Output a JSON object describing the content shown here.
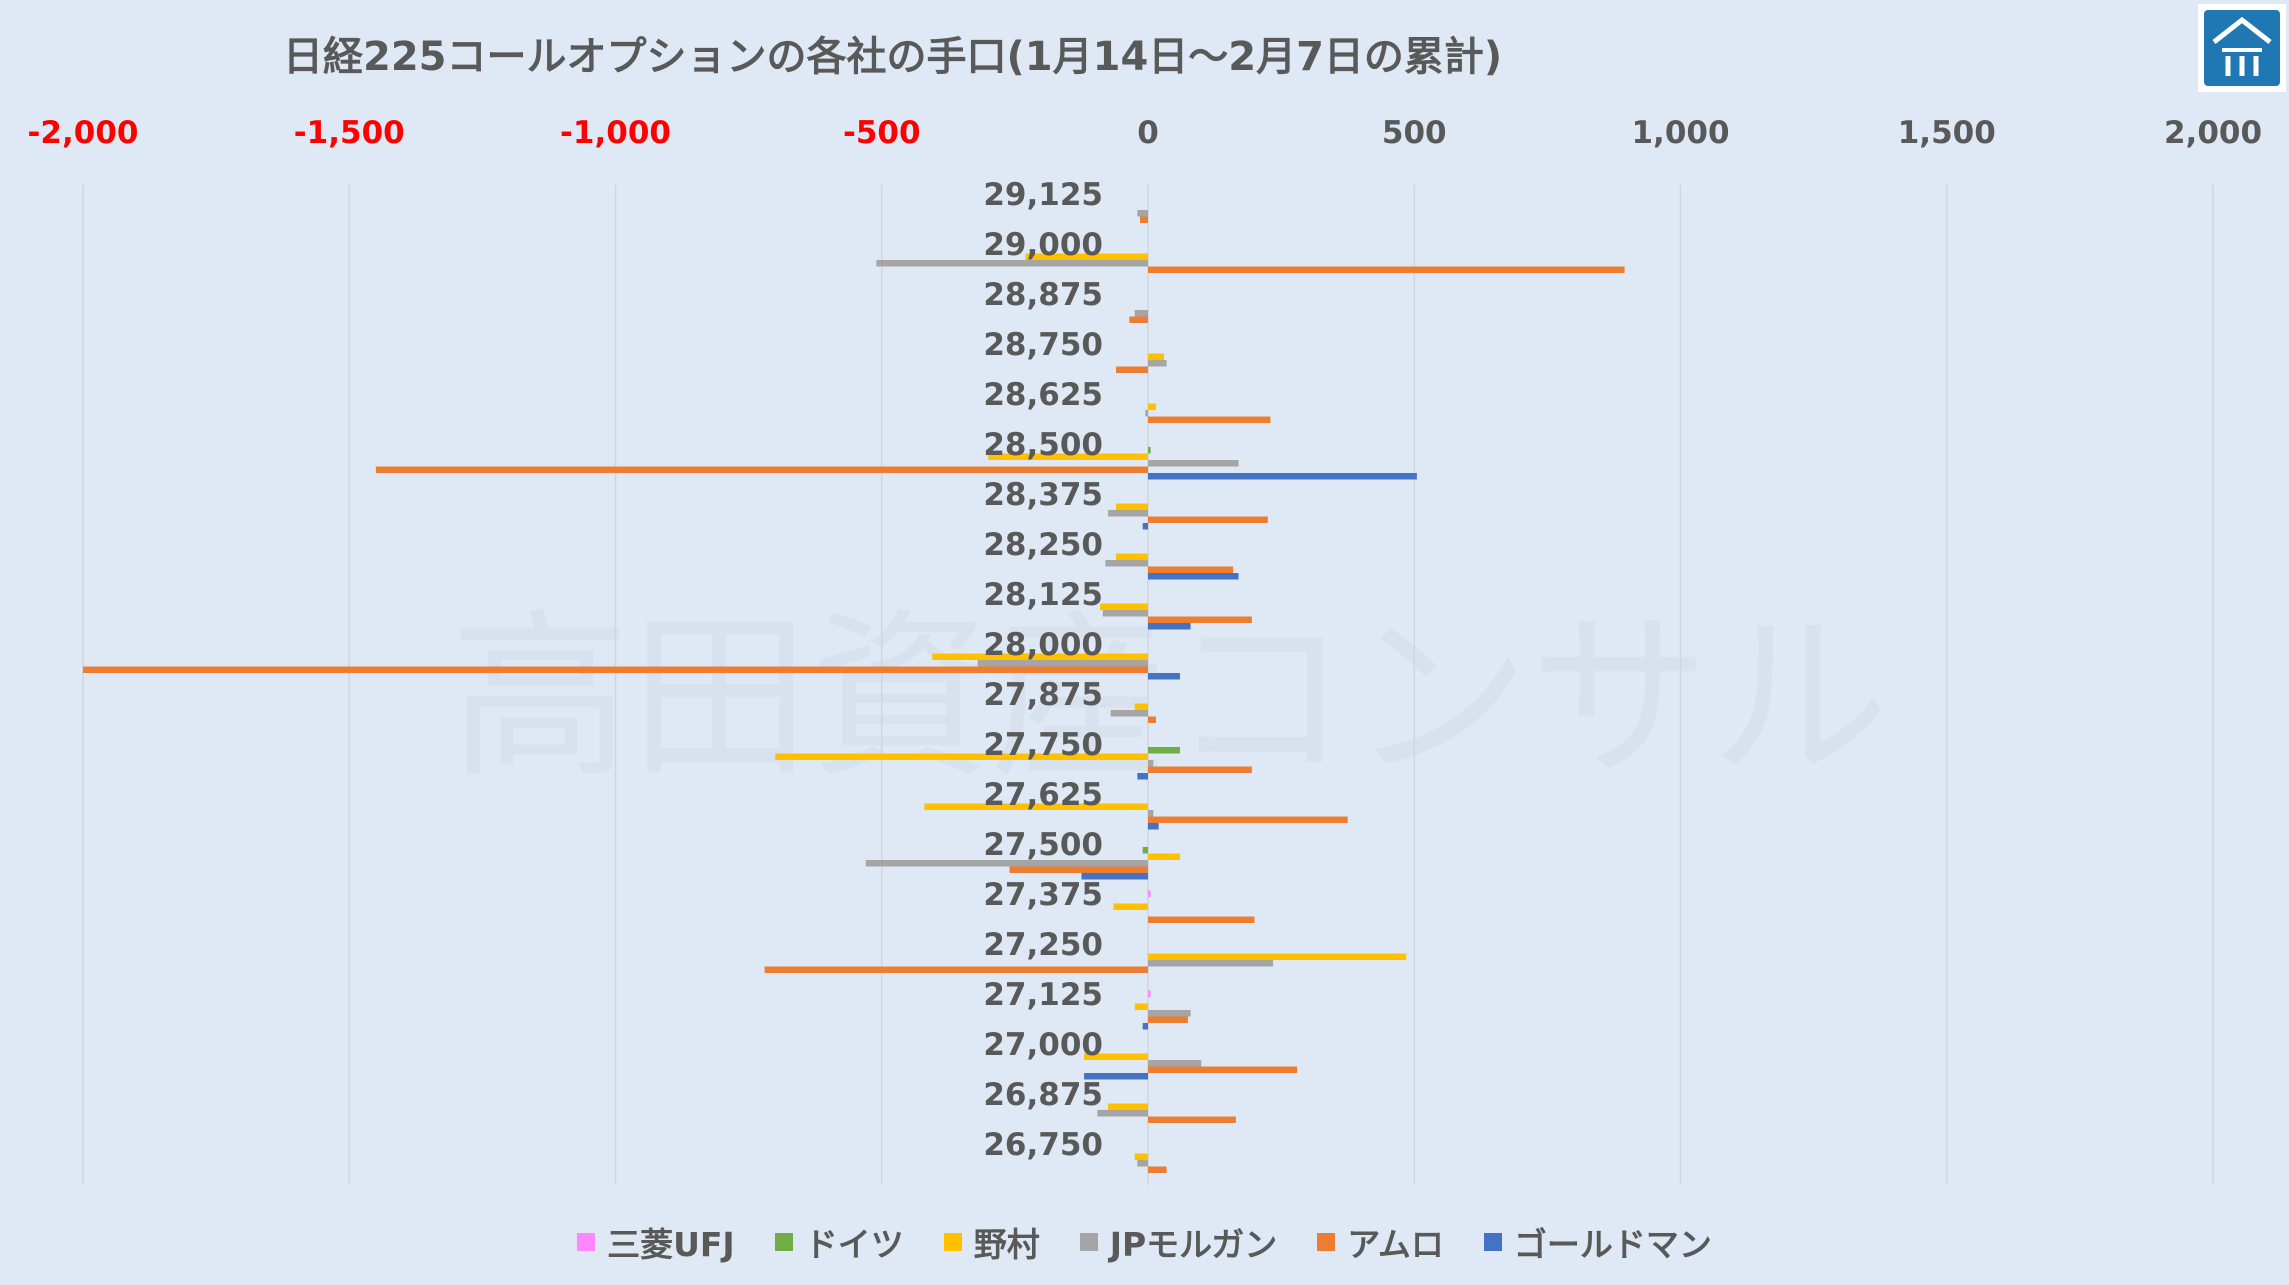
{
  "chart_data": {
    "type": "bar",
    "orientation": "horizontal",
    "title": "日経225コールオプションの各社の手口(1月14日～2月7日の累計)",
    "xlim": [
      -2000,
      2000
    ],
    "x_ticks": [
      -2000,
      -1500,
      -1000,
      -500,
      0,
      500,
      1000,
      1500,
      2000
    ],
    "x_tick_labels": [
      "-2,000",
      "-1,500",
      "-1,000",
      "-500",
      "0",
      "500",
      "1,000",
      "1,500",
      "2,000"
    ],
    "negative_tick_color": "#ff0000",
    "positive_tick_color": "#595959",
    "grid": "vertical",
    "legend_position": "bottom",
    "watermark": "高田資産コンサル",
    "categories": [
      "29,125",
      "29,000",
      "28,875",
      "28,750",
      "28,625",
      "28,500",
      "28,375",
      "28,250",
      "28,125",
      "28,000",
      "27,875",
      "27,750",
      "27,625",
      "27,500",
      "27,375",
      "27,250",
      "27,125",
      "27,000",
      "26,875",
      "26,750"
    ],
    "series": [
      {
        "name": "三菱UFJ",
        "color": "#ff88ff",
        "values": [
          0,
          0,
          0,
          0,
          0,
          0,
          0,
          0,
          0,
          0,
          0,
          0,
          0,
          0,
          5,
          0,
          5,
          0,
          0,
          0
        ]
      },
      {
        "name": "ドイツ",
        "color": "#70ad47",
        "values": [
          0,
          0,
          0,
          0,
          0,
          5,
          0,
          0,
          0,
          0,
          0,
          60,
          0,
          -10,
          0,
          0,
          0,
          0,
          0,
          0
        ]
      },
      {
        "name": "野村",
        "color": "#ffc000",
        "values": [
          0,
          -230,
          0,
          30,
          15,
          -300,
          -60,
          -60,
          -90,
          -405,
          -25,
          -700,
          -420,
          60,
          -65,
          485,
          -25,
          -120,
          -75,
          -25
        ]
      },
      {
        "name": "JPモルガン",
        "color": "#a5a5a5",
        "values": [
          -20,
          -510,
          -25,
          35,
          -5,
          170,
          -75,
          -80,
          -85,
          -320,
          -70,
          10,
          10,
          -530,
          0,
          235,
          80,
          100,
          -95,
          -20
        ]
      },
      {
        "name": "アムロ",
        "color": "#ed7d31",
        "values": [
          -15,
          895,
          -35,
          -60,
          230,
          -1450,
          225,
          160,
          195,
          -2000,
          15,
          195,
          375,
          -260,
          200,
          -720,
          75,
          280,
          165,
          35
        ]
      },
      {
        "name": "ゴールドマン",
        "color": "#4472c4",
        "values": [
          0,
          0,
          0,
          0,
          0,
          505,
          -10,
          170,
          80,
          60,
          0,
          -20,
          20,
          -125,
          0,
          0,
          -10,
          -120,
          0,
          0
        ]
      }
    ]
  }
}
